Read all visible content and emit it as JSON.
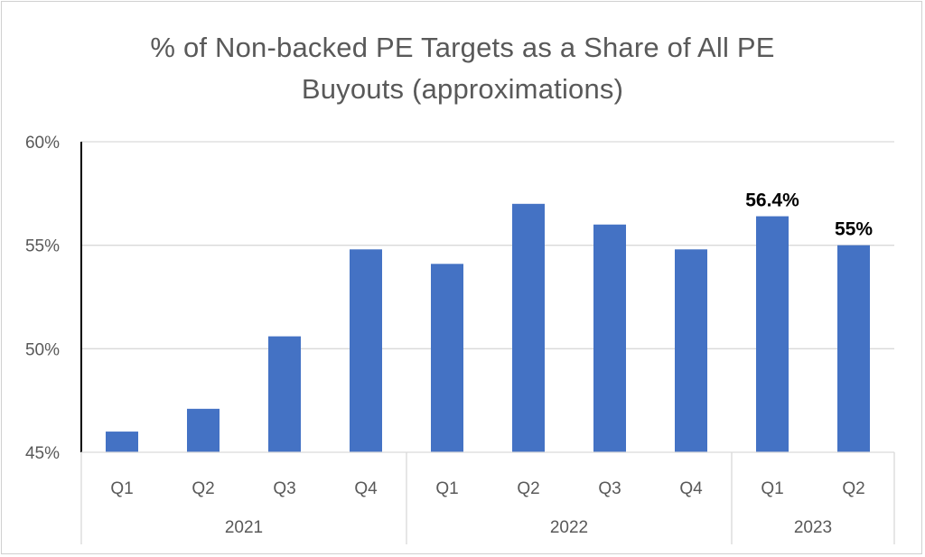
{
  "chart_data": {
    "type": "bar",
    "title_lines": [
      "% of Non-backed PE Targets as a Share of All PE",
      "Buyouts (approximations)"
    ],
    "categories": [
      "Q1",
      "Q2",
      "Q3",
      "Q4",
      "Q1",
      "Q2",
      "Q3",
      "Q4",
      "Q1",
      "Q2"
    ],
    "groups": [
      {
        "label": "2021",
        "count": 4
      },
      {
        "label": "2022",
        "count": 4
      },
      {
        "label": "2023",
        "count": 2
      }
    ],
    "values": [
      46.0,
      47.1,
      50.6,
      54.8,
      54.1,
      57.0,
      56.0,
      54.8,
      56.4,
      55.0
    ],
    "data_labels": [
      "",
      "",
      "",
      "",
      "",
      "",
      "",
      "",
      "56.4%",
      "55%"
    ],
    "ylim": [
      45,
      60
    ],
    "yticks": [
      45,
      50,
      55,
      60
    ],
    "ytick_labels": [
      "45%",
      "50%",
      "55%",
      "60%"
    ],
    "grid": true,
    "bar_color": "#4472c4",
    "grid_color": "#d9d9d9"
  }
}
